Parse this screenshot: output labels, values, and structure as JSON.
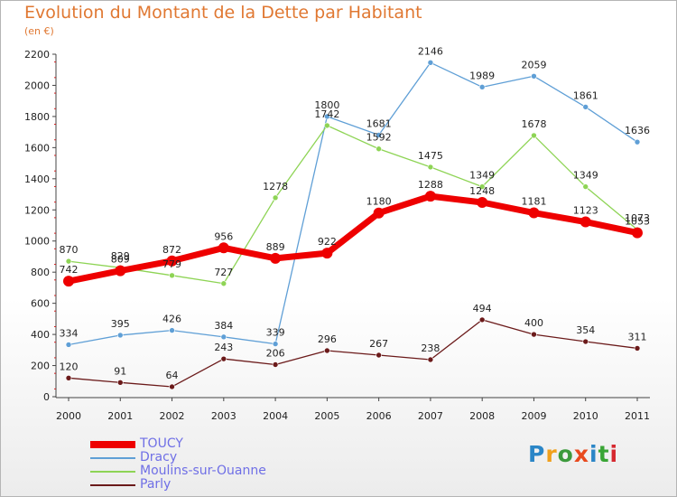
{
  "title": "Evolution du Montant de la Dette par Habitant",
  "subtitle": "(en €)",
  "logo": {
    "text": "Proxiti",
    "colors": [
      "#2b86c7",
      "#f0a01c",
      "#3c9a3c",
      "#e8491d",
      "#2b86c7",
      "#39a535",
      "#d6282f"
    ]
  },
  "chart_data": {
    "type": "line",
    "x": [
      "2000",
      "2001",
      "2002",
      "2003",
      "2004",
      "2005",
      "2006",
      "2007",
      "2008",
      "2009",
      "2010",
      "2011"
    ],
    "ylim": [
      0,
      2200
    ],
    "yticks": [
      0,
      200,
      400,
      600,
      800,
      1000,
      1200,
      1400,
      1600,
      1800,
      2000,
      2200
    ],
    "grid": false,
    "legend_position": "bottom-left",
    "series": [
      {
        "name": "Parly",
        "color": "#6b1a1a",
        "values": [
          120,
          91,
          64,
          243,
          206,
          296,
          267,
          238,
          494,
          400,
          354,
          311
        ],
        "labels": [
          "120",
          "91",
          "64",
          "243",
          "206",
          "296",
          "267",
          "238",
          "494",
          "400",
          "354",
          "311"
        ]
      },
      {
        "name": "Dracy",
        "color": "#5f9fd6",
        "values": [
          334,
          395,
          426,
          384,
          339,
          1800,
          1681,
          2146,
          1989,
          2059,
          1861,
          1636
        ],
        "labels": [
          "334",
          "395",
          "426",
          "384",
          "339",
          "1800",
          "1681",
          "2146",
          "1989",
          "2059",
          "1861",
          "1636"
        ]
      },
      {
        "name": "Moulins-sur-Ouanne",
        "color": "#8ed455",
        "values": [
          870,
          829,
          779,
          727,
          1278,
          1742,
          1592,
          1475,
          1349,
          1678,
          1349,
          1073
        ],
        "labels": [
          "870",
          "829",
          "779",
          "727",
          "1278",
          "1742",
          "1592",
          "1475",
          "1349",
          "1678",
          "1349",
          "1073"
        ]
      },
      {
        "name": "TOUCY",
        "color": "#ee0000",
        "values": [
          742,
          809,
          872,
          956,
          889,
          922,
          1180,
          1288,
          1248,
          1181,
          1123,
          1053
        ],
        "labels": [
          "742",
          "809",
          "872",
          "956",
          "889",
          "922",
          "1180",
          "1288",
          "1248",
          "1181",
          "1123",
          "1053"
        ]
      }
    ]
  },
  "legend": [
    {
      "name": "TOUCY",
      "color": "#ee0000"
    },
    {
      "name": "Dracy",
      "color": "#5f9fd6"
    },
    {
      "name": "Moulins-sur-Ouanne",
      "color": "#8ed455"
    },
    {
      "name": "Parly",
      "color": "#6b1a1a"
    }
  ]
}
